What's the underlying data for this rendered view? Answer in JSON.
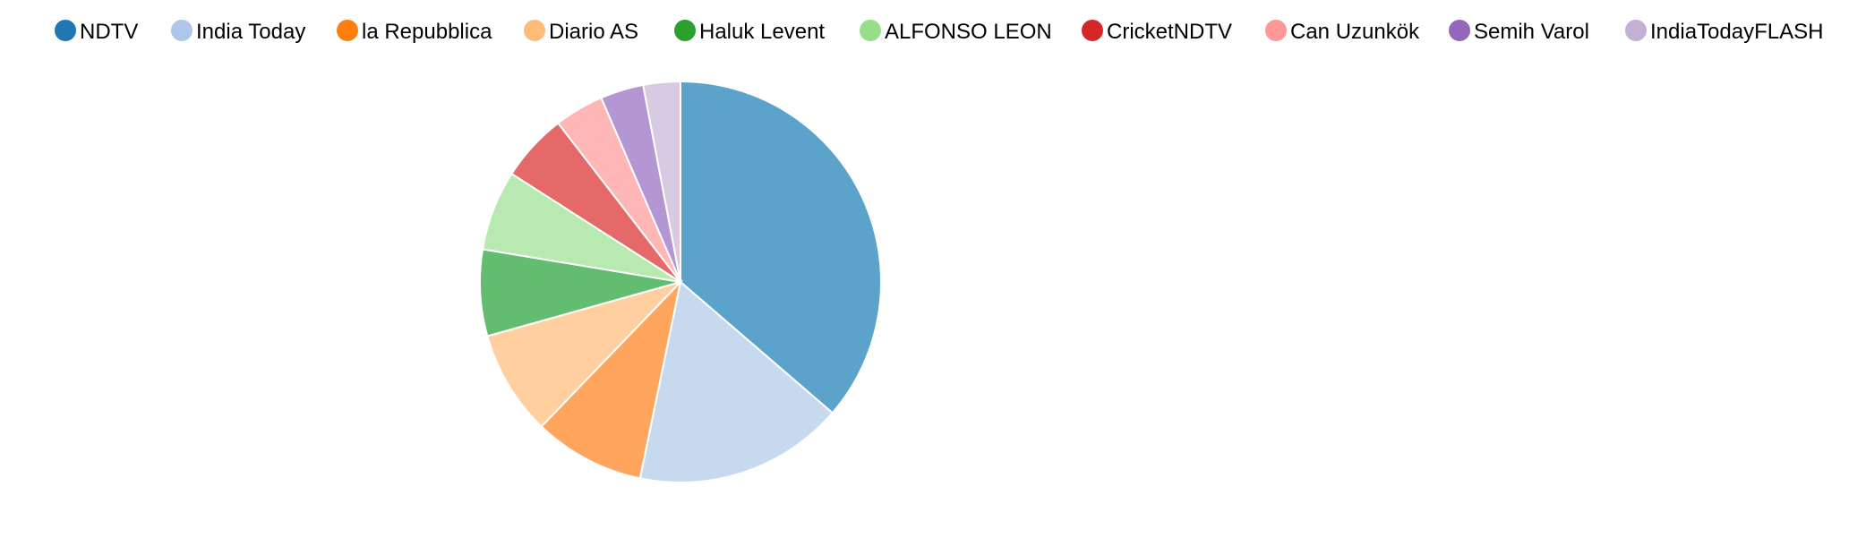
{
  "chart_data": {
    "type": "pie",
    "title": "",
    "legend_position": "top",
    "categories": [
      "NDTV",
      "India Today",
      "la Repubblica",
      "Diario AS",
      "Haluk Levent",
      "ALFONSO LEON",
      "CricketNDTV",
      "Can Uzunkök",
      "Semih Varol",
      "IndiaTodayFLASH"
    ],
    "values": [
      36.5,
      17.0,
      9.0,
      8.5,
      7.0,
      6.5,
      5.5,
      4.0,
      3.5,
      3.0
    ],
    "legend_colors": [
      "#1f77b4",
      "#aec7e8",
      "#ff7f0e",
      "#ffbb78",
      "#2ca02c",
      "#98df8a",
      "#d62728",
      "#ff9896",
      "#9467bd",
      "#c5b0d5"
    ],
    "slice_colors": [
      "#5ba3cb",
      "#c6d9ef",
      "#ffa55e",
      "#ffcfa0",
      "#63bd71",
      "#b7e9b0",
      "#e56969",
      "#ffb7b5",
      "#b496d3",
      "#d8cae3"
    ]
  }
}
